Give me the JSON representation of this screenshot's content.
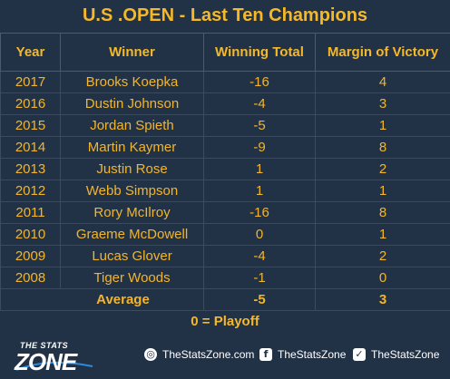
{
  "title": "U.S .OPEN - Last Ten Champions",
  "headers": {
    "year": "Year",
    "winner": "Winner",
    "total": "Winning Total",
    "margin": "Margin of Victory"
  },
  "rows": [
    {
      "year": "2017",
      "winner": "Brooks Koepka",
      "total": "-16",
      "margin": "4"
    },
    {
      "year": "2016",
      "winner": "Dustin Johnson",
      "total": "-4",
      "margin": "3"
    },
    {
      "year": "2015",
      "winner": "Jordan Spieth",
      "total": "-5",
      "margin": "1"
    },
    {
      "year": "2014",
      "winner": "Martin Kaymer",
      "total": "-9",
      "margin": "8"
    },
    {
      "year": "2013",
      "winner": "Justin Rose",
      "total": "1",
      "margin": "2"
    },
    {
      "year": "2012",
      "winner": "Webb Simpson",
      "total": "1",
      "margin": "1"
    },
    {
      "year": "2011",
      "winner": "Rory McIlroy",
      "total": "-16",
      "margin": "8"
    },
    {
      "year": "2010",
      "winner": "Graeme McDowell",
      "total": "0",
      "margin": "1"
    },
    {
      "year": "2009",
      "winner": "Lucas Glover",
      "total": "-4",
      "margin": "2"
    },
    {
      "year": "2008",
      "winner": "Tiger Woods",
      "total": "-1",
      "margin": "0"
    }
  ],
  "average": {
    "label": "Average",
    "total": "-5",
    "margin": "3"
  },
  "note": "0 = Playoff",
  "footer": {
    "logo_small": "THE STATS",
    "logo_big": "ZONE",
    "website": "TheStatsZone.com",
    "facebook": "TheStatsZone",
    "twitter": "TheStatsZone"
  },
  "icons": {
    "website": "globe-icon",
    "facebook": "facebook-icon",
    "twitter": "twitter-icon"
  },
  "colors": {
    "background": "#223246",
    "accent": "#f5b829",
    "gridline": "#3b4a5d"
  }
}
